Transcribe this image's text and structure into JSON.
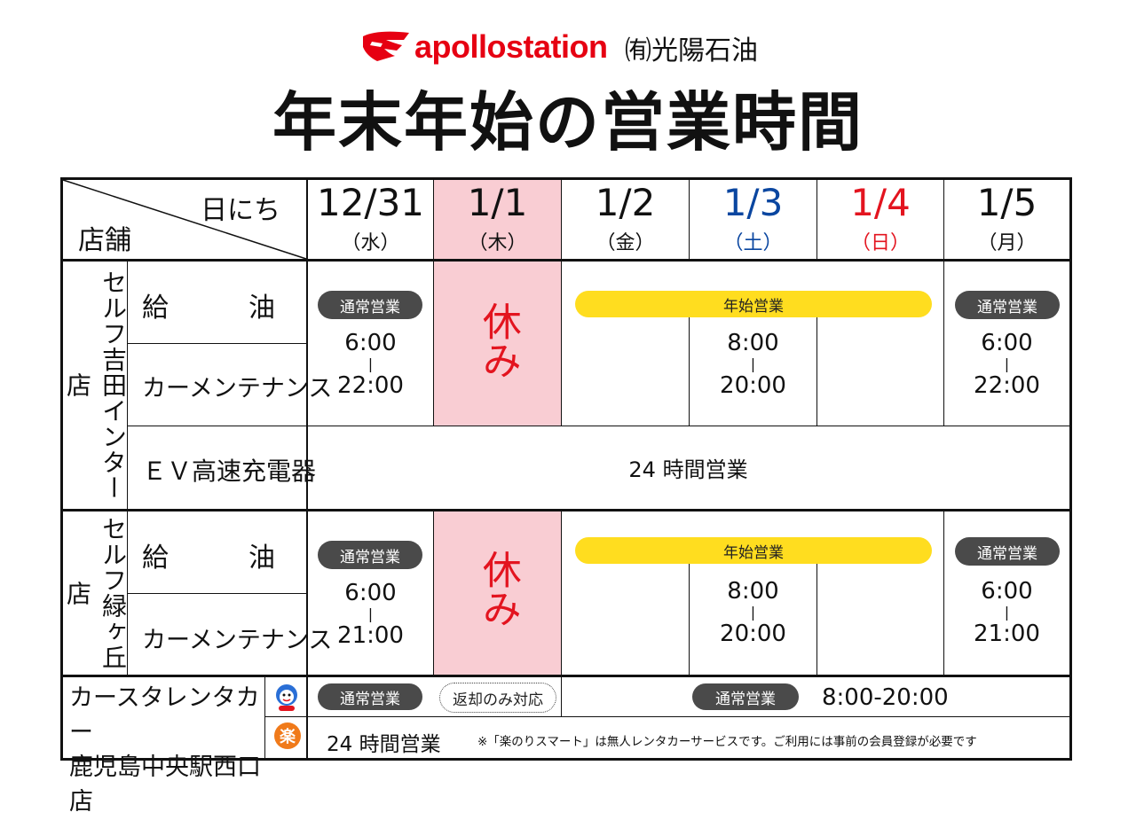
{
  "header": {
    "brand": "apollostation",
    "company": "㈲光陽石油",
    "title": "年末年始の営業時間"
  },
  "table": {
    "corner_date": "日にち",
    "corner_store": "店舗",
    "dates": [
      {
        "date": "12/31",
        "day": "（水）",
        "color": "#111111"
      },
      {
        "date": "1/1",
        "day": "（木）",
        "color": "#111111"
      },
      {
        "date": "1/2",
        "day": "（金）",
        "color": "#111111"
      },
      {
        "date": "1/3",
        "day": "（土）",
        "color": "#0a46a0"
      },
      {
        "date": "1/4",
        "day": "（日）",
        "color": "#e3141f"
      },
      {
        "date": "1/5",
        "day": "（月）",
        "color": "#111111"
      }
    ],
    "store1": {
      "name": "セルフ吉田インター店",
      "services": [
        "給　　　油",
        "カーメンテナンス",
        "ＥＶ高速充電器"
      ],
      "normal": "通常営業",
      "closed": "休み",
      "newyear": "年始営業",
      "d1231": {
        "open": "6:00",
        "sep": "|",
        "close": "22:00"
      },
      "d0102": {
        "open": "8:00",
        "sep": "|",
        "close": "20:00"
      },
      "d0105": {
        "open": "6:00",
        "sep": "|",
        "close": "22:00"
      },
      "ev": "24 時間営業"
    },
    "store2": {
      "name": "セルフ緑ヶ丘店",
      "services": [
        "給　　　油",
        "カーメンテナンス"
      ],
      "normal": "通常営業",
      "closed": "休み",
      "newyear": "年始営業",
      "d1231": {
        "open": "6:00",
        "sep": "|",
        "close": "21:00"
      },
      "d0102": {
        "open": "8:00",
        "sep": "|",
        "close": "20:00"
      },
      "d0105": {
        "open": "6:00",
        "sep": "|",
        "close": "21:00"
      }
    },
    "store3": {
      "name_line1": "カースタレンタカー",
      "name_line2": "鹿児島中央駅西口店",
      "row1": {
        "normal_1231": "通常営業",
        "return_only": "返却のみ対応",
        "normal_rest": "通常営業",
        "hours": "8:00-20:00"
      },
      "row2": {
        "icon_char": "楽",
        "hours": "24 時間営業",
        "note": "※「楽のりスマート」は無人レンタカーサービスです。ご利用には事前の会員登録が必要です"
      }
    }
  },
  "colors": {
    "brand_red": "#e60012",
    "closed_pink": "#f9cdd3",
    "newyear_yellow": "#ffdd1f",
    "pill_gray": "#4a4a4a"
  }
}
